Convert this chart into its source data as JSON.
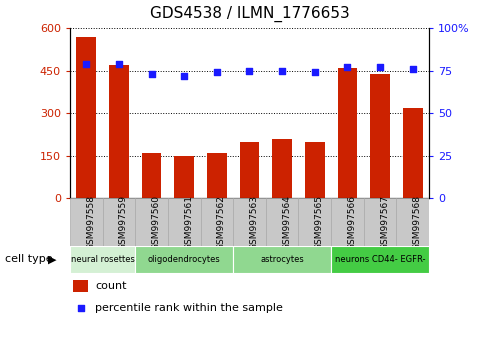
{
  "title": "GDS4538 / ILMN_1776653",
  "samples": [
    "GSM997558",
    "GSM997559",
    "GSM997560",
    "GSM997561",
    "GSM997562",
    "GSM997563",
    "GSM997564",
    "GSM997565",
    "GSM997566",
    "GSM997567",
    "GSM997568"
  ],
  "counts": [
    570,
    470,
    160,
    150,
    160,
    200,
    210,
    200,
    460,
    440,
    320
  ],
  "percentiles": [
    79,
    79,
    73,
    72,
    74,
    75,
    75,
    74,
    77,
    77,
    76
  ],
  "ylim_left": [
    0,
    600
  ],
  "ylim_right": [
    0,
    100
  ],
  "yticks_left": [
    0,
    150,
    300,
    450,
    600
  ],
  "yticks_right": [
    0,
    25,
    50,
    75,
    100
  ],
  "bar_color": "#cc2200",
  "dot_color": "#1a1aff",
  "bg_color": "#ffffff",
  "plot_bg": "#ffffff",
  "cell_type_groups": [
    {
      "label": "neural rosettes",
      "start": 0,
      "end": 2,
      "color": "#d4f0d4"
    },
    {
      "label": "oligodendrocytes",
      "start": 2,
      "end": 5,
      "color": "#90d890"
    },
    {
      "label": "astrocytes",
      "start": 5,
      "end": 8,
      "color": "#90d890"
    },
    {
      "label": "neurons CD44- EGFR-",
      "start": 8,
      "end": 11,
      "color": "#44cc44"
    }
  ],
  "legend_count_label": "count",
  "legend_pct_label": "percentile rank within the sample",
  "xlabel_cell_type": "cell type",
  "gray_box_color": "#c8c8c8",
  "gray_box_edge": "#aaaaaa"
}
